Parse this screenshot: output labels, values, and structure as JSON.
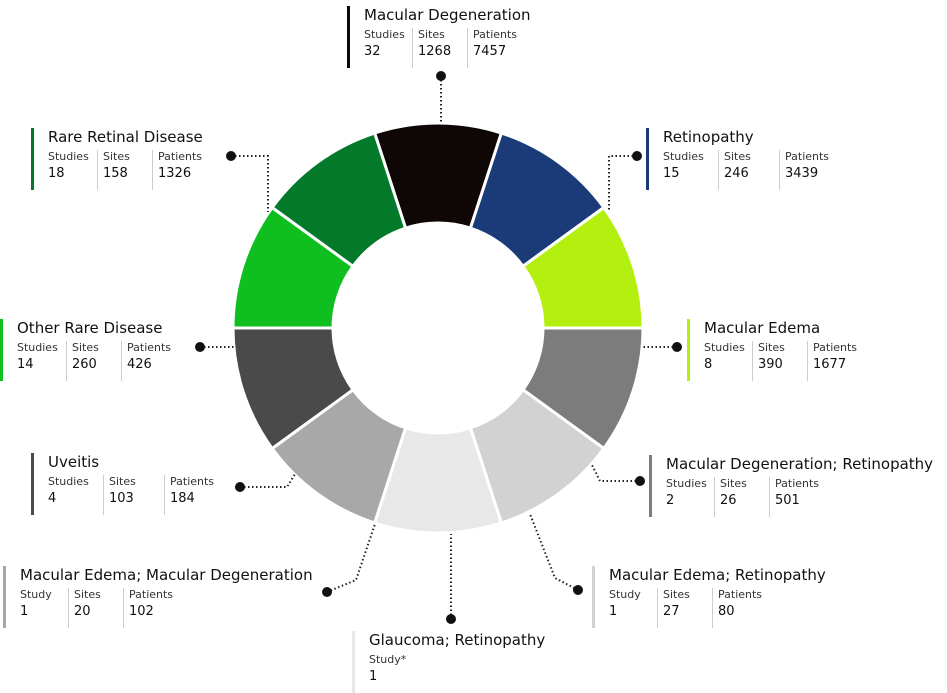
{
  "nodes": [
    {
      "title": "Macular Degeneration",
      "color": "#0f0606",
      "stats": [
        {
          "label": "Studies",
          "value": 32
        },
        {
          "label": "Sites",
          "value": 1268
        },
        {
          "label": "Patients",
          "value": 7457
        }
      ]
    },
    {
      "title": "Retinopathy",
      "color": "#1a3a78",
      "stats": [
        {
          "label": "Studies",
          "value": 15
        },
        {
          "label": "Sites",
          "value": 246
        },
        {
          "label": "Patients",
          "value": 3439
        }
      ]
    },
    {
      "title": "Macular Edema",
      "color": "#b4f00f",
      "stats": [
        {
          "label": "Studies",
          "value": 8
        },
        {
          "label": "Sites",
          "value": 390
        },
        {
          "label": "Patients",
          "value": 1677
        }
      ]
    },
    {
      "title": "Macular Degeneration; Retinopathy",
      "color": "#7c7c7c",
      "stats": [
        {
          "label": "Studies",
          "value": 2
        },
        {
          "label": "Sites",
          "value": 26
        },
        {
          "label": "Patients",
          "value": 501
        }
      ]
    },
    {
      "title": "Macular Edema; Retinopathy",
      "color": "#d2d2d2",
      "stats": [
        {
          "label": "Study",
          "value": 1
        },
        {
          "label": "Sites",
          "value": 27
        },
        {
          "label": "Patients",
          "value": 80
        }
      ]
    },
    {
      "title": "Glaucoma; Retinopathy",
      "color": "#e8e8e8",
      "stats": [
        {
          "label": "Study*",
          "value": 1
        }
      ]
    },
    {
      "title": "Macular Edema; Macular Degeneration",
      "color": "#a8a8a8",
      "stats": [
        {
          "label": "Study",
          "value": 1
        },
        {
          "label": "Sites",
          "value": 20
        },
        {
          "label": "Patients",
          "value": 102
        }
      ]
    },
    {
      "title": "Uveitis",
      "color": "#4a4a4a",
      "stats": [
        {
          "label": "Studies",
          "value": 4
        },
        {
          "label": "Sites",
          "value": 103
        },
        {
          "label": "Patients",
          "value": 184
        }
      ]
    },
    {
      "title": "Other Rare Disease",
      "color": "#0fbf1f",
      "stats": [
        {
          "label": "Studies",
          "value": 14
        },
        {
          "label": "Sites",
          "value": 260
        },
        {
          "label": "Patients",
          "value": 426
        }
      ]
    },
    {
      "title": "Rare Retinal Disease",
      "color": "#037a2a",
      "stats": [
        {
          "label": "Studies",
          "value": 18
        },
        {
          "label": "Sites",
          "value": 158
        },
        {
          "label": "Patients",
          "value": 1326
        }
      ]
    }
  ]
}
